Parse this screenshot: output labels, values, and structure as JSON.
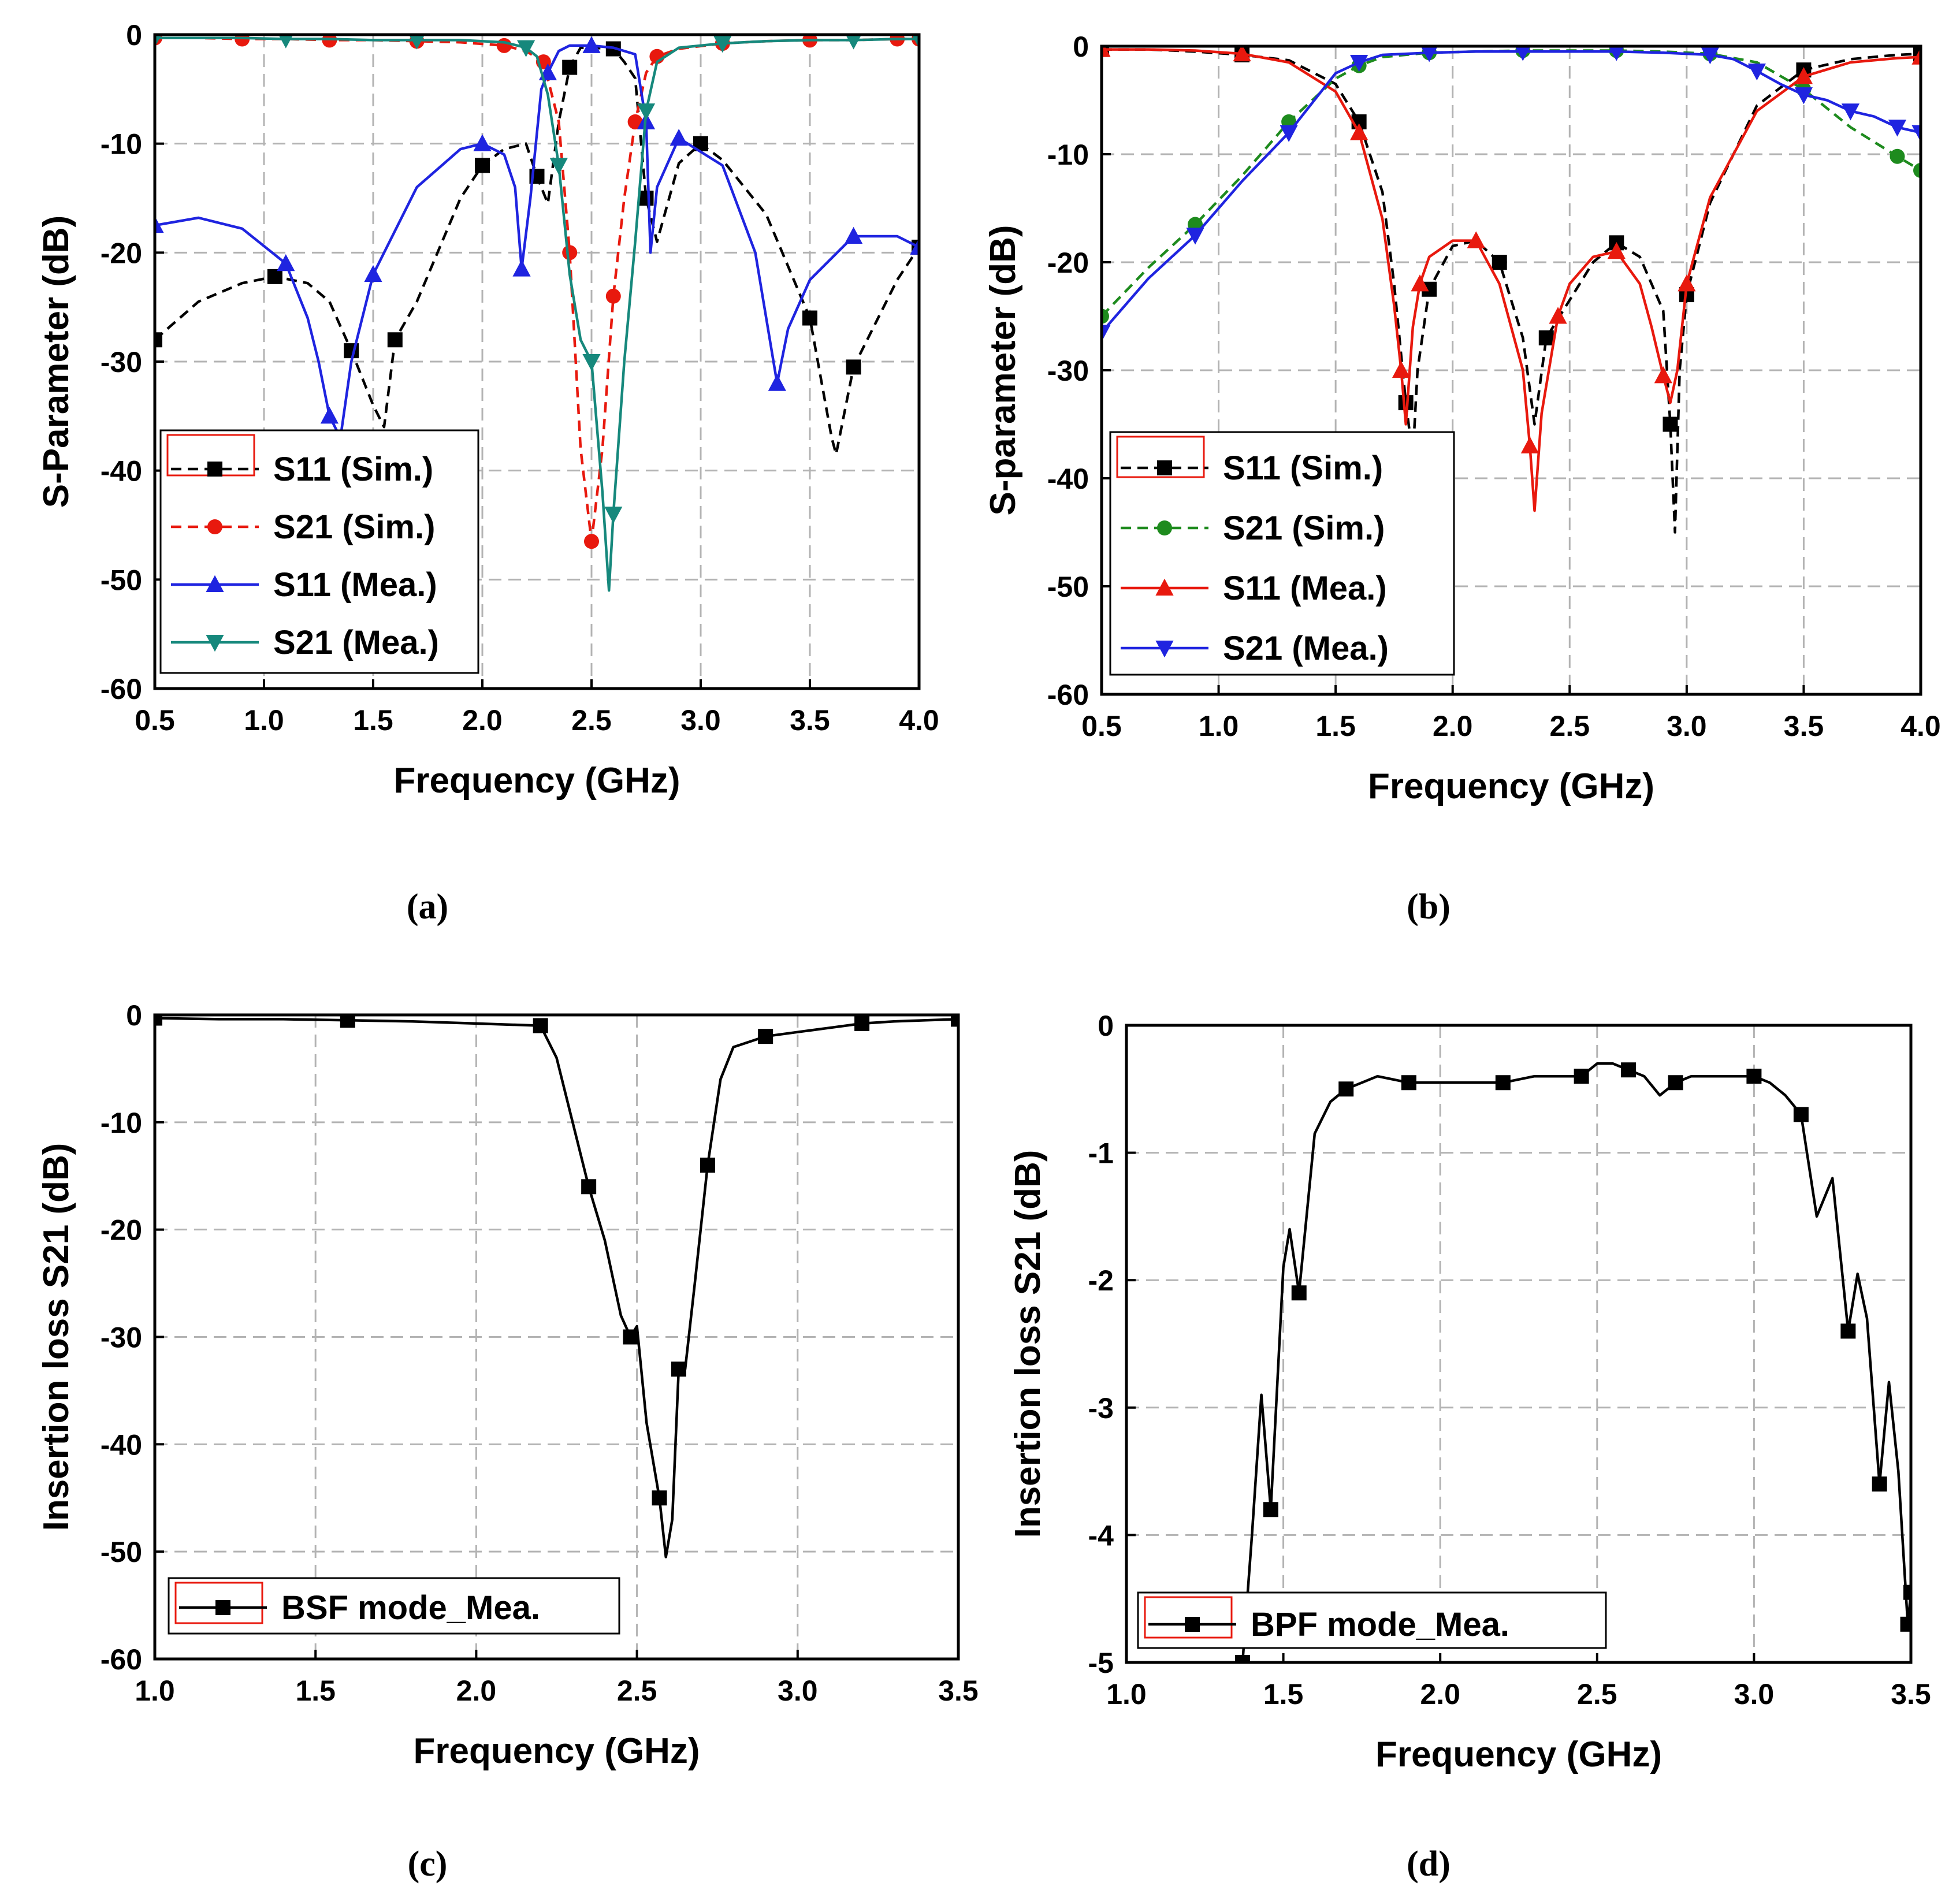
{
  "chart_data": [
    {
      "id": "a",
      "type": "line",
      "caption": "(a)",
      "xlabel": "Frequency (GHz)",
      "ylabel": "S-Parameter (dB)",
      "xlim": [
        0.5,
        4.0
      ],
      "ylim": [
        -60,
        0
      ],
      "xticks": [
        "0.5",
        "1.0",
        "1.5",
        "2.0",
        "2.5",
        "3.0",
        "3.5",
        "4.0"
      ],
      "yticks": [
        "0",
        "-10",
        "-20",
        "-30",
        "-40",
        "-50",
        "-60"
      ],
      "grid": true,
      "legend_position": "bottom-left",
      "series": [
        {
          "name": "S11 (Sim.)",
          "color": "#000000",
          "dash": "dashed",
          "marker": "square",
          "x": [
            0.5,
            0.7,
            0.9,
            1.05,
            1.2,
            1.3,
            1.4,
            1.5,
            1.55,
            1.6,
            1.7,
            1.9,
            2.0,
            2.1,
            2.2,
            2.25,
            2.3,
            2.35,
            2.4,
            2.45,
            2.5,
            2.6,
            2.65,
            2.7,
            2.75,
            2.8,
            2.9,
            3.0,
            3.1,
            3.3,
            3.5,
            3.6,
            3.62,
            3.7,
            3.9,
            4.0
          ],
          "y": [
            -28,
            -24.5,
            -22.8,
            -22.2,
            -22.8,
            -24.5,
            -29,
            -34,
            -36,
            -28,
            -24.5,
            -15,
            -12,
            -10.5,
            -10,
            -13,
            -15.5,
            -8,
            -3,
            -1.2,
            -1.2,
            -1.3,
            -2.5,
            -4,
            -15,
            -19,
            -11.8,
            -10,
            -11.5,
            -16.5,
            -26,
            -37,
            -38.5,
            -30.5,
            -22.5,
            -19.5
          ]
        },
        {
          "name": "S21 (Sim.)",
          "color": "#e8190e",
          "dash": "dashed",
          "marker": "circle",
          "x": [
            0.5,
            0.7,
            0.9,
            1.1,
            1.3,
            1.5,
            1.7,
            1.9,
            2.1,
            2.2,
            2.28,
            2.35,
            2.4,
            2.45,
            2.5,
            2.55,
            2.6,
            2.65,
            2.7,
            2.75,
            2.8,
            2.9,
            3.1,
            3.3,
            3.5,
            3.7,
            3.9,
            4.0
          ],
          "y": [
            -0.3,
            -0.3,
            -0.4,
            -0.4,
            -0.5,
            -0.5,
            -0.6,
            -0.7,
            -1.0,
            -1.5,
            -2.5,
            -8,
            -20,
            -38,
            -46.5,
            -38,
            -24,
            -15,
            -8,
            -3.5,
            -2,
            -1.3,
            -0.8,
            -0.6,
            -0.5,
            -0.5,
            -0.4,
            -0.4
          ]
        },
        {
          "name": "S11 (Mea.)",
          "color": "#1f24e0",
          "dash": "solid",
          "marker": "triangle-up",
          "x": [
            0.5,
            0.7,
            0.9,
            1.1,
            1.2,
            1.25,
            1.3,
            1.35,
            1.4,
            1.5,
            1.7,
            1.9,
            2.0,
            2.1,
            2.15,
            2.18,
            2.22,
            2.27,
            2.3,
            2.35,
            2.4,
            2.5,
            2.6,
            2.7,
            2.75,
            2.77,
            2.8,
            2.9,
            3.1,
            3.25,
            3.35,
            3.4,
            3.5,
            3.7,
            3.9,
            4.0
          ],
          "y": [
            -17.5,
            -16.8,
            -17.8,
            -21,
            -26,
            -30,
            -35,
            -37,
            -30,
            -22,
            -14,
            -10.5,
            -10,
            -11,
            -14,
            -21.5,
            -15,
            -5,
            -3.5,
            -1.5,
            -1,
            -1,
            -1.2,
            -1.8,
            -8,
            -20,
            -14,
            -9.5,
            -12,
            -20,
            -32,
            -27,
            -22.5,
            -18.5,
            -18.5,
            -19.5
          ]
        },
        {
          "name": "S21 (Mea.)",
          "color": "#16887c",
          "dash": "solid",
          "marker": "triangle-down",
          "x": [
            0.5,
            0.7,
            0.9,
            1.1,
            1.3,
            1.5,
            1.7,
            1.9,
            2.1,
            2.2,
            2.25,
            2.3,
            2.35,
            2.4,
            2.45,
            2.5,
            2.55,
            2.58,
            2.6,
            2.65,
            2.7,
            2.75,
            2.8,
            2.9,
            3.1,
            3.3,
            3.5,
            3.7,
            3.9,
            4.0
          ],
          "y": [
            -0.3,
            -0.3,
            -0.3,
            -0.4,
            -0.4,
            -0.5,
            -0.5,
            -0.5,
            -0.7,
            -1.2,
            -2,
            -5.5,
            -12,
            -22,
            -28,
            -30,
            -42,
            -51,
            -44,
            -30,
            -19,
            -7,
            -2.5,
            -1.2,
            -0.8,
            -0.6,
            -0.5,
            -0.5,
            -0.4,
            -0.4
          ]
        }
      ]
    },
    {
      "id": "b",
      "type": "line",
      "caption": "(b)",
      "xlabel": "Frequency (GHz)",
      "ylabel": "S-parameter (dB)",
      "xlim": [
        0.5,
        4.0
      ],
      "ylim": [
        -60,
        0
      ],
      "xticks": [
        "0.5",
        "1.0",
        "1.5",
        "2.0",
        "2.5",
        "3.0",
        "3.5",
        "4.0"
      ],
      "yticks": [
        "0",
        "-10",
        "-20",
        "-30",
        "-40",
        "-50",
        "-60"
      ],
      "grid": true,
      "legend_position": "bottom-left",
      "series": [
        {
          "name": "S11 (Sim.)",
          "color": "#000000",
          "dash": "dashed",
          "marker": "square",
          "x": [
            0.5,
            0.7,
            0.9,
            1.1,
            1.3,
            1.5,
            1.6,
            1.7,
            1.75,
            1.8,
            1.83,
            1.85,
            1.9,
            2.0,
            2.1,
            2.2,
            2.3,
            2.35,
            2.4,
            2.5,
            2.6,
            2.7,
            2.8,
            2.9,
            2.93,
            2.95,
            2.97,
            3.0,
            3.1,
            3.3,
            3.5,
            3.7,
            3.9,
            4.0
          ],
          "y": [
            -0.3,
            -0.3,
            -0.5,
            -0.8,
            -1.3,
            -3.5,
            -7,
            -13.5,
            -22,
            -33,
            -38,
            -30,
            -22.5,
            -18.5,
            -18,
            -20,
            -27,
            -35,
            -27,
            -23.5,
            -20,
            -18.2,
            -19.5,
            -24.5,
            -35,
            -45,
            -30,
            -23,
            -14.5,
            -5.5,
            -2.2,
            -1.2,
            -0.8,
            -0.7
          ]
        },
        {
          "name": "S21 (Sim.)",
          "color": "#1e8b1e",
          "dash": "dashed",
          "marker": "circle",
          "x": [
            0.5,
            0.7,
            0.9,
            1.1,
            1.3,
            1.5,
            1.6,
            1.7,
            1.9,
            2.1,
            2.3,
            2.5,
            2.7,
            2.9,
            3.1,
            3.3,
            3.5,
            3.7,
            3.9,
            4.0
          ],
          "y": [
            -25,
            -20.5,
            -16.5,
            -12,
            -7,
            -3,
            -1.8,
            -1.0,
            -0.6,
            -0.5,
            -0.4,
            -0.4,
            -0.4,
            -0.5,
            -0.7,
            -1.5,
            -4,
            -7.5,
            -10.2,
            -11.5
          ]
        },
        {
          "name": "S11 (Mea.)",
          "color": "#e8190e",
          "dash": "solid",
          "marker": "triangle-up",
          "x": [
            0.5,
            0.7,
            0.9,
            1.1,
            1.3,
            1.5,
            1.6,
            1.7,
            1.75,
            1.78,
            1.8,
            1.83,
            1.86,
            1.9,
            2.0,
            2.1,
            2.2,
            2.3,
            2.33,
            2.35,
            2.38,
            2.45,
            2.5,
            2.6,
            2.7,
            2.8,
            2.85,
            2.9,
            2.93,
            2.96,
            3.0,
            3.1,
            3.3,
            3.5,
            3.7,
            3.9,
            4.0
          ],
          "y": [
            -0.3,
            -0.3,
            -0.4,
            -0.7,
            -1.5,
            -4.2,
            -8,
            -16,
            -24,
            -30,
            -35,
            -26,
            -22,
            -19.5,
            -18,
            -18,
            -22,
            -30,
            -37,
            -43,
            -34,
            -25,
            -22,
            -19.5,
            -19,
            -22,
            -26,
            -30.5,
            -33,
            -30,
            -22,
            -14,
            -6,
            -2.8,
            -1.5,
            -1.1,
            -1.0
          ]
        },
        {
          "name": "S21 (Mea.)",
          "color": "#1f24e0",
          "dash": "solid",
          "marker": "triangle-down",
          "x": [
            0.5,
            0.7,
            0.9,
            1.1,
            1.3,
            1.5,
            1.6,
            1.7,
            1.9,
            2.1,
            2.3,
            2.5,
            2.7,
            2.9,
            3.1,
            3.2,
            3.3,
            3.4,
            3.5,
            3.6,
            3.7,
            3.8,
            3.9,
            4.0
          ],
          "y": [
            -26.5,
            -21.5,
            -17.5,
            -12.5,
            -8,
            -2.5,
            -1.5,
            -0.8,
            -0.6,
            -0.5,
            -0.5,
            -0.5,
            -0.5,
            -0.6,
            -0.8,
            -1.2,
            -2.3,
            -3.5,
            -4.5,
            -5,
            -6,
            -6.5,
            -7.5,
            -8
          ]
        }
      ]
    },
    {
      "id": "c",
      "type": "line",
      "caption": "(c)",
      "xlabel": "Frequency (GHz)",
      "ylabel": "Insertion loss S21 (dB)",
      "xlim": [
        1.0,
        3.5
      ],
      "ylim": [
        -60,
        0
      ],
      "xticks": [
        "1.0",
        "1.5",
        "2.0",
        "2.5",
        "3.0",
        "3.5"
      ],
      "yticks": [
        "0",
        "-10",
        "-20",
        "-30",
        "-40",
        "-50",
        "-60"
      ],
      "grid": true,
      "legend_position": "bottom-left",
      "series": [
        {
          "name": "BSF mode_Mea.",
          "color": "#000000",
          "dash": "solid",
          "marker": "square",
          "x": [
            1.0,
            1.2,
            1.4,
            1.6,
            1.8,
            2.0,
            2.2,
            2.25,
            2.3,
            2.35,
            2.4,
            2.45,
            2.48,
            2.5,
            2.53,
            2.57,
            2.59,
            2.61,
            2.63,
            2.65,
            2.68,
            2.72,
            2.76,
            2.8,
            2.9,
            3.0,
            3.1,
            3.2,
            3.3,
            3.4,
            3.5
          ],
          "y": [
            -0.3,
            -0.4,
            -0.4,
            -0.5,
            -0.6,
            -0.8,
            -1.0,
            -4,
            -10,
            -16,
            -21,
            -28,
            -30,
            -29,
            -38,
            -45,
            -50.5,
            -47,
            -33,
            -33,
            -25,
            -14,
            -6,
            -3,
            -2,
            -1.6,
            -1.2,
            -0.8,
            -0.6,
            -0.5,
            -0.4
          ]
        }
      ]
    },
    {
      "id": "d",
      "type": "line",
      "caption": "(d)",
      "xlabel": "Frequency (GHz)",
      "ylabel": "Insertion loss S21 (dB)",
      "xlim": [
        1.0,
        3.5
      ],
      "ylim": [
        -5,
        0
      ],
      "xticks": [
        "1.0",
        "1.5",
        "2.0",
        "2.5",
        "3.0",
        "3.5"
      ],
      "yticks": [
        "0",
        "-1",
        "-2",
        "-3",
        "-4",
        "-5"
      ],
      "grid": true,
      "legend_position": "bottom-left",
      "series": [
        {
          "name": "BPF mode_Mea.",
          "color": "#000000",
          "dash": "solid",
          "marker": "square",
          "x": [
            1.37,
            1.4,
            1.43,
            1.46,
            1.5,
            1.52,
            1.55,
            1.6,
            1.65,
            1.7,
            1.75,
            1.8,
            1.9,
            2.0,
            2.1,
            2.2,
            2.3,
            2.4,
            2.45,
            2.5,
            2.55,
            2.6,
            2.65,
            2.7,
            2.75,
            2.8,
            2.9,
            3.0,
            3.05,
            3.1,
            3.15,
            3.2,
            3.25,
            3.3,
            3.33,
            3.36,
            3.4,
            3.43,
            3.46,
            3.49,
            3.5
          ],
          "y": [
            -5,
            -4,
            -2.9,
            -3.8,
            -1.9,
            -1.6,
            -2.1,
            -0.85,
            -0.6,
            -0.5,
            -0.45,
            -0.4,
            -0.45,
            -0.45,
            -0.45,
            -0.45,
            -0.4,
            -0.4,
            -0.4,
            -0.3,
            -0.3,
            -0.35,
            -0.4,
            -0.55,
            -0.45,
            -0.4,
            -0.4,
            -0.4,
            -0.45,
            -0.55,
            -0.7,
            -1.5,
            -1.2,
            -2.4,
            -1.95,
            -2.3,
            -3.6,
            -2.8,
            -3.5,
            -4.7,
            -4.45
          ]
        }
      ]
    }
  ]
}
